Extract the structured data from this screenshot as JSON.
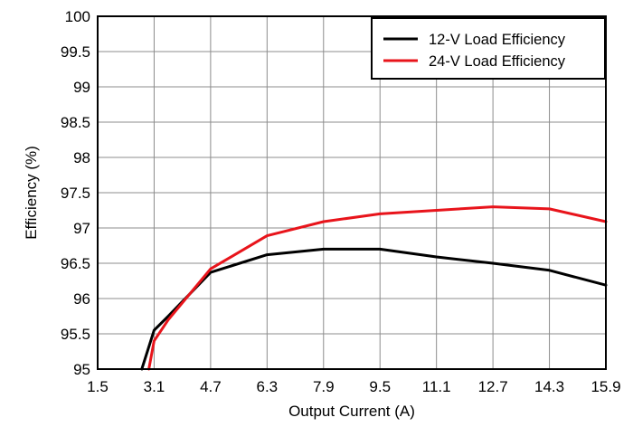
{
  "chart_data": {
    "type": "line",
    "title": "",
    "xlabel": "Output Current (A)",
    "ylabel": "Efficiency (%)",
    "xlim": [
      1.5,
      15.9
    ],
    "ylim": [
      95,
      100
    ],
    "x_ticks": [
      "1.5",
      "3.1",
      "4.7",
      "6.3",
      "7.9",
      "9.5",
      "11.1",
      "12.7",
      "14.3",
      "15.9"
    ],
    "y_ticks": [
      "95",
      "95.5",
      "96",
      "96.5",
      "97",
      "97.5",
      "98",
      "98.5",
      "99",
      "99.5",
      "100"
    ],
    "grid": true,
    "legend_position": "top-right",
    "series": [
      {
        "name": "12-V Load Efficiency",
        "color": "#000000",
        "x": [
          2.75,
          3.1,
          3.5,
          4.7,
          6.3,
          7.9,
          9.5,
          11.1,
          12.7,
          14.3,
          15.9
        ],
        "y": [
          95.0,
          95.55,
          95.75,
          96.37,
          96.62,
          96.7,
          96.7,
          96.59,
          96.5,
          96.4,
          96.19
        ]
      },
      {
        "name": "24-V Load Efficiency",
        "color": "#e8141b",
        "x": [
          2.95,
          3.1,
          3.5,
          4.7,
          6.3,
          7.9,
          9.5,
          11.1,
          12.7,
          14.3,
          15.9
        ],
        "y": [
          95.0,
          95.4,
          95.7,
          96.42,
          96.89,
          97.09,
          97.2,
          97.25,
          97.3,
          97.27,
          97.09
        ]
      }
    ]
  }
}
